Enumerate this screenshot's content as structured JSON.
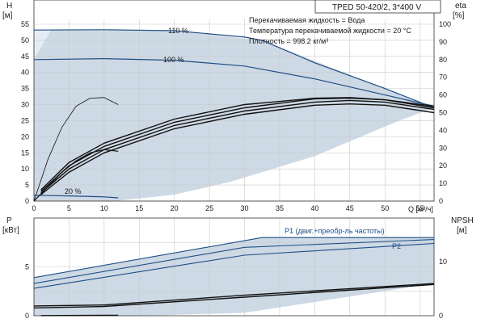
{
  "colors": {
    "envelope": "#cdd9e5",
    "envelope_light": "#e4ecf4",
    "blue_curve": "#1f4e86",
    "black_curve": "#111111",
    "grid": "#c9c9c9",
    "axis": "#333333"
  },
  "chart_data": [
    {
      "type": "line",
      "title": "TPED 50-420/2, 3*400 V",
      "ylabel_left": "H [м]",
      "ylabel_right": "eta [%]",
      "xlabel": "Q [м³/ч]",
      "xlim": [
        0,
        57
      ],
      "ylim_left": [
        0,
        55
      ],
      "ylim_right": [
        0,
        100
      ],
      "xticks": [
        0,
        5,
        10,
        15,
        20,
        25,
        30,
        35,
        40,
        45,
        50,
        55
      ],
      "yticks_left": [
        0,
        5,
        10,
        15,
        20,
        25,
        30,
        35,
        40,
        45,
        50,
        55
      ],
      "yticks_right": [
        0,
        10,
        20,
        30,
        40,
        50,
        60,
        70,
        80,
        90,
        100
      ],
      "grid": true,
      "info_lines": [
        "Перекачиваемая жидкость = Вода",
        "Температура перекачиваемой жидкости = 20 °C",
        "Плотность = 998.2 кг/м³"
      ],
      "speed_labels": [
        "110 %",
        "100 %",
        "20 %"
      ],
      "series": [
        {
          "name": "110 %",
          "x": [
            0,
            10,
            20,
            30,
            32.5,
            40,
            50,
            57
          ],
          "y": [
            53.2,
            53.3,
            53.0,
            51.0,
            50.0,
            43.0,
            35.0,
            29.0
          ]
        },
        {
          "name": "100 %",
          "x": [
            0,
            10,
            20,
            30,
            40,
            50,
            57
          ],
          "y": [
            44.0,
            44.3,
            43.8,
            42.0,
            38.0,
            33.0,
            29.5
          ]
        },
        {
          "name": "20 %",
          "x": [
            0,
            5,
            10,
            12
          ],
          "y": [
            1.8,
            1.6,
            1.3,
            1.0
          ]
        },
        {
          "x": [
            0,
            2,
            4,
            6,
            8,
            10,
            12
          ],
          "y": [
            0,
            13,
            23,
            29.5,
            32.0,
            32.2,
            30.0
          ]
        },
        {
          "x": [
            0,
            2,
            4,
            6,
            8,
            10,
            12
          ],
          "y": [
            0,
            4.5,
            9.0,
            12.5,
            15.0,
            16.0,
            15.5
          ]
        },
        {
          "x": [
            1,
            5,
            10,
            20,
            30,
            40,
            45,
            50,
            57
          ],
          "y": [
            2,
            9,
            15,
            22.5,
            27.0,
            29.8,
            30.2,
            29.8,
            27.5
          ]
        },
        {
          "x": [
            1,
            5,
            10,
            20,
            30,
            40,
            45,
            50,
            57
          ],
          "y": [
            2.5,
            10,
            16,
            23.5,
            28.0,
            30.8,
            31.3,
            30.8,
            28.5
          ]
        },
        {
          "x": [
            1,
            5,
            10,
            20,
            30,
            40,
            45,
            50,
            57
          ],
          "y": [
            3,
            11,
            17,
            24.5,
            29.0,
            31.8,
            32.0,
            31.5,
            29.0
          ]
        },
        {
          "x": [
            1,
            5,
            10,
            20,
            30,
            40,
            45,
            50,
            57
          ],
          "y": [
            3.5,
            12,
            18,
            25.5,
            30.0,
            32.0,
            32.2,
            31.5,
            29.5
          ]
        }
      ]
    },
    {
      "type": "line",
      "ylabel_left": "P [кВт]",
      "ylabel_right": "NPSH [м]",
      "xlim": [
        0,
        57
      ],
      "ylim_left": [
        0,
        10
      ],
      "ylim_right": [
        0,
        18
      ],
      "yticks_left": [
        0,
        5
      ],
      "yticks_right": [
        0,
        10
      ],
      "grid": true,
      "series": [
        {
          "name": "P1 (двиг.+преобр-ль частоты)",
          "x": [
            0,
            32.5,
            57
          ],
          "y": [
            3.9,
            8.0,
            8.0
          ]
        },
        {
          "x": [
            0,
            30,
            57
          ],
          "y": [
            3.3,
            7.0,
            7.8
          ]
        },
        {
          "name": "P2",
          "x": [
            0,
            30,
            57
          ],
          "y": [
            2.8,
            6.2,
            7.4
          ]
        },
        {
          "x": [
            0,
            10,
            30,
            57
          ],
          "y": [
            1.0,
            1.1,
            2.1,
            3.3
          ]
        },
        {
          "x": [
            0,
            10,
            30,
            57
          ],
          "y": [
            0.8,
            0.95,
            1.9,
            3.2
          ]
        },
        {
          "x": [
            1,
            12
          ],
          "y": [
            0.02,
            0.05
          ]
        }
      ]
    }
  ]
}
